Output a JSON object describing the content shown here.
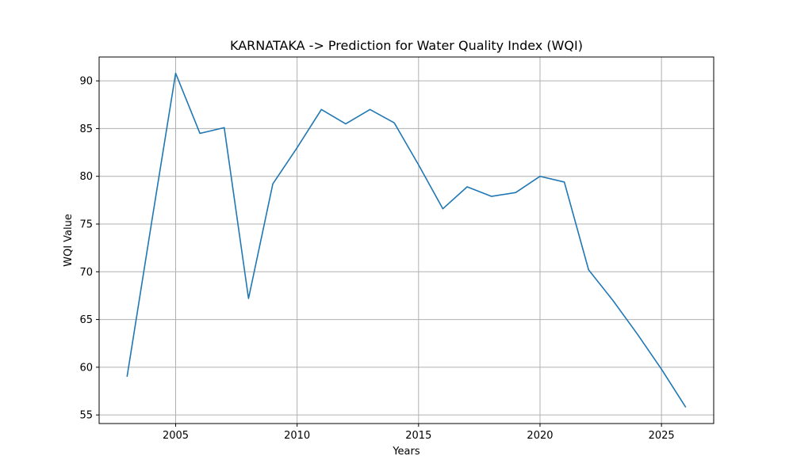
{
  "chart_data": {
    "type": "line",
    "title": "KARNATAKA -> Prediction for Water Quality Index (WQI)",
    "xlabel": "Years",
    "ylabel": "WQI Value",
    "xlim": [
      2001.85,
      2027.15
    ],
    "ylim": [
      54.1,
      92.5
    ],
    "xticks": [
      2005,
      2010,
      2015,
      2020,
      2025
    ],
    "yticks": [
      55,
      60,
      65,
      70,
      75,
      80,
      85,
      90
    ],
    "grid": true,
    "colors": {
      "line": "#1f77b4",
      "grid": "#b0b0b0",
      "axes": "#000000"
    },
    "series": [
      {
        "x": [
          2003,
          2004,
          2005,
          2006,
          2007,
          2008,
          2009,
          2010,
          2011,
          2012,
          2013,
          2014,
          2015,
          2016,
          2017,
          2018,
          2019,
          2020,
          2021,
          2022,
          2023,
          2024,
          2025,
          2026
        ],
        "values": [
          59.0,
          75.0,
          90.8,
          84.5,
          85.1,
          67.2,
          79.2,
          83.0,
          87.0,
          85.5,
          87.0,
          85.6,
          81.2,
          76.6,
          78.9,
          77.9,
          78.3,
          80.0,
          79.4,
          70.2,
          67.0,
          63.5,
          59.8,
          55.8
        ]
      }
    ]
  }
}
